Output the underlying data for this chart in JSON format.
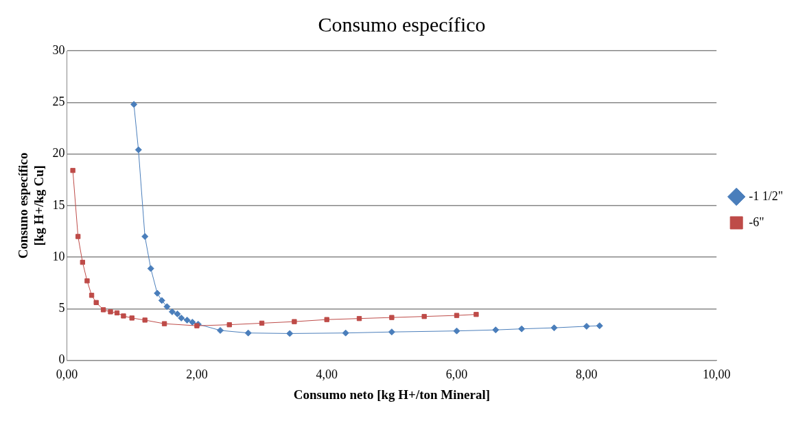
{
  "chart_data": {
    "type": "line",
    "title": "Consumo específico",
    "xlabel": "Consumo neto [kg H+/ton Mineral]",
    "ylabel": "Consuno específico\n[kg H+/kg Cu]",
    "xlim": [
      0,
      10
    ],
    "xticks": [
      {
        "value": 0,
        "label": "0,00"
      },
      {
        "value": 2,
        "label": "2,00"
      },
      {
        "value": 4,
        "label": "4,00"
      },
      {
        "value": 6,
        "label": "6,00"
      },
      {
        "value": 8,
        "label": "8,00"
      },
      {
        "value": 10,
        "label": "10,00"
      }
    ],
    "ylim": [
      0,
      30
    ],
    "yticks": [
      0,
      5,
      10,
      15,
      20,
      25,
      30
    ],
    "grid": "y",
    "legend": "right",
    "line_style": "solid",
    "series": [
      {
        "name": "-1 1/2\"",
        "color": "#4a7ebb",
        "marker": "diamond",
        "x": [
          1.03,
          1.1,
          1.2,
          1.29,
          1.39,
          1.46,
          1.54,
          1.62,
          1.7,
          1.76,
          1.85,
          1.93,
          2.02,
          2.36,
          2.79,
          3.43,
          4.29,
          5.0,
          6.0,
          6.6,
          7.0,
          7.5,
          8.0,
          8.2
        ],
        "values": [
          24.8,
          20.4,
          12.0,
          8.9,
          6.5,
          5.8,
          5.2,
          4.7,
          4.5,
          4.1,
          3.9,
          3.7,
          3.5,
          2.9,
          2.65,
          2.6,
          2.65,
          2.75,
          2.85,
          2.95,
          3.05,
          3.15,
          3.3,
          3.35
        ]
      },
      {
        "name": "-6\"",
        "color": "#be4b48",
        "marker": "square",
        "x": [
          0.09,
          0.17,
          0.24,
          0.31,
          0.38,
          0.45,
          0.56,
          0.67,
          0.77,
          0.87,
          1.0,
          1.2,
          1.5,
          2.0,
          2.5,
          3.0,
          3.5,
          4.0,
          4.5,
          5.0,
          5.5,
          6.0,
          6.3
        ],
        "values": [
          18.4,
          12.0,
          9.5,
          7.7,
          6.3,
          5.6,
          4.9,
          4.7,
          4.6,
          4.3,
          4.1,
          3.9,
          3.55,
          3.35,
          3.45,
          3.6,
          3.75,
          3.95,
          4.05,
          4.15,
          4.25,
          4.35,
          4.45
        ]
      }
    ]
  }
}
